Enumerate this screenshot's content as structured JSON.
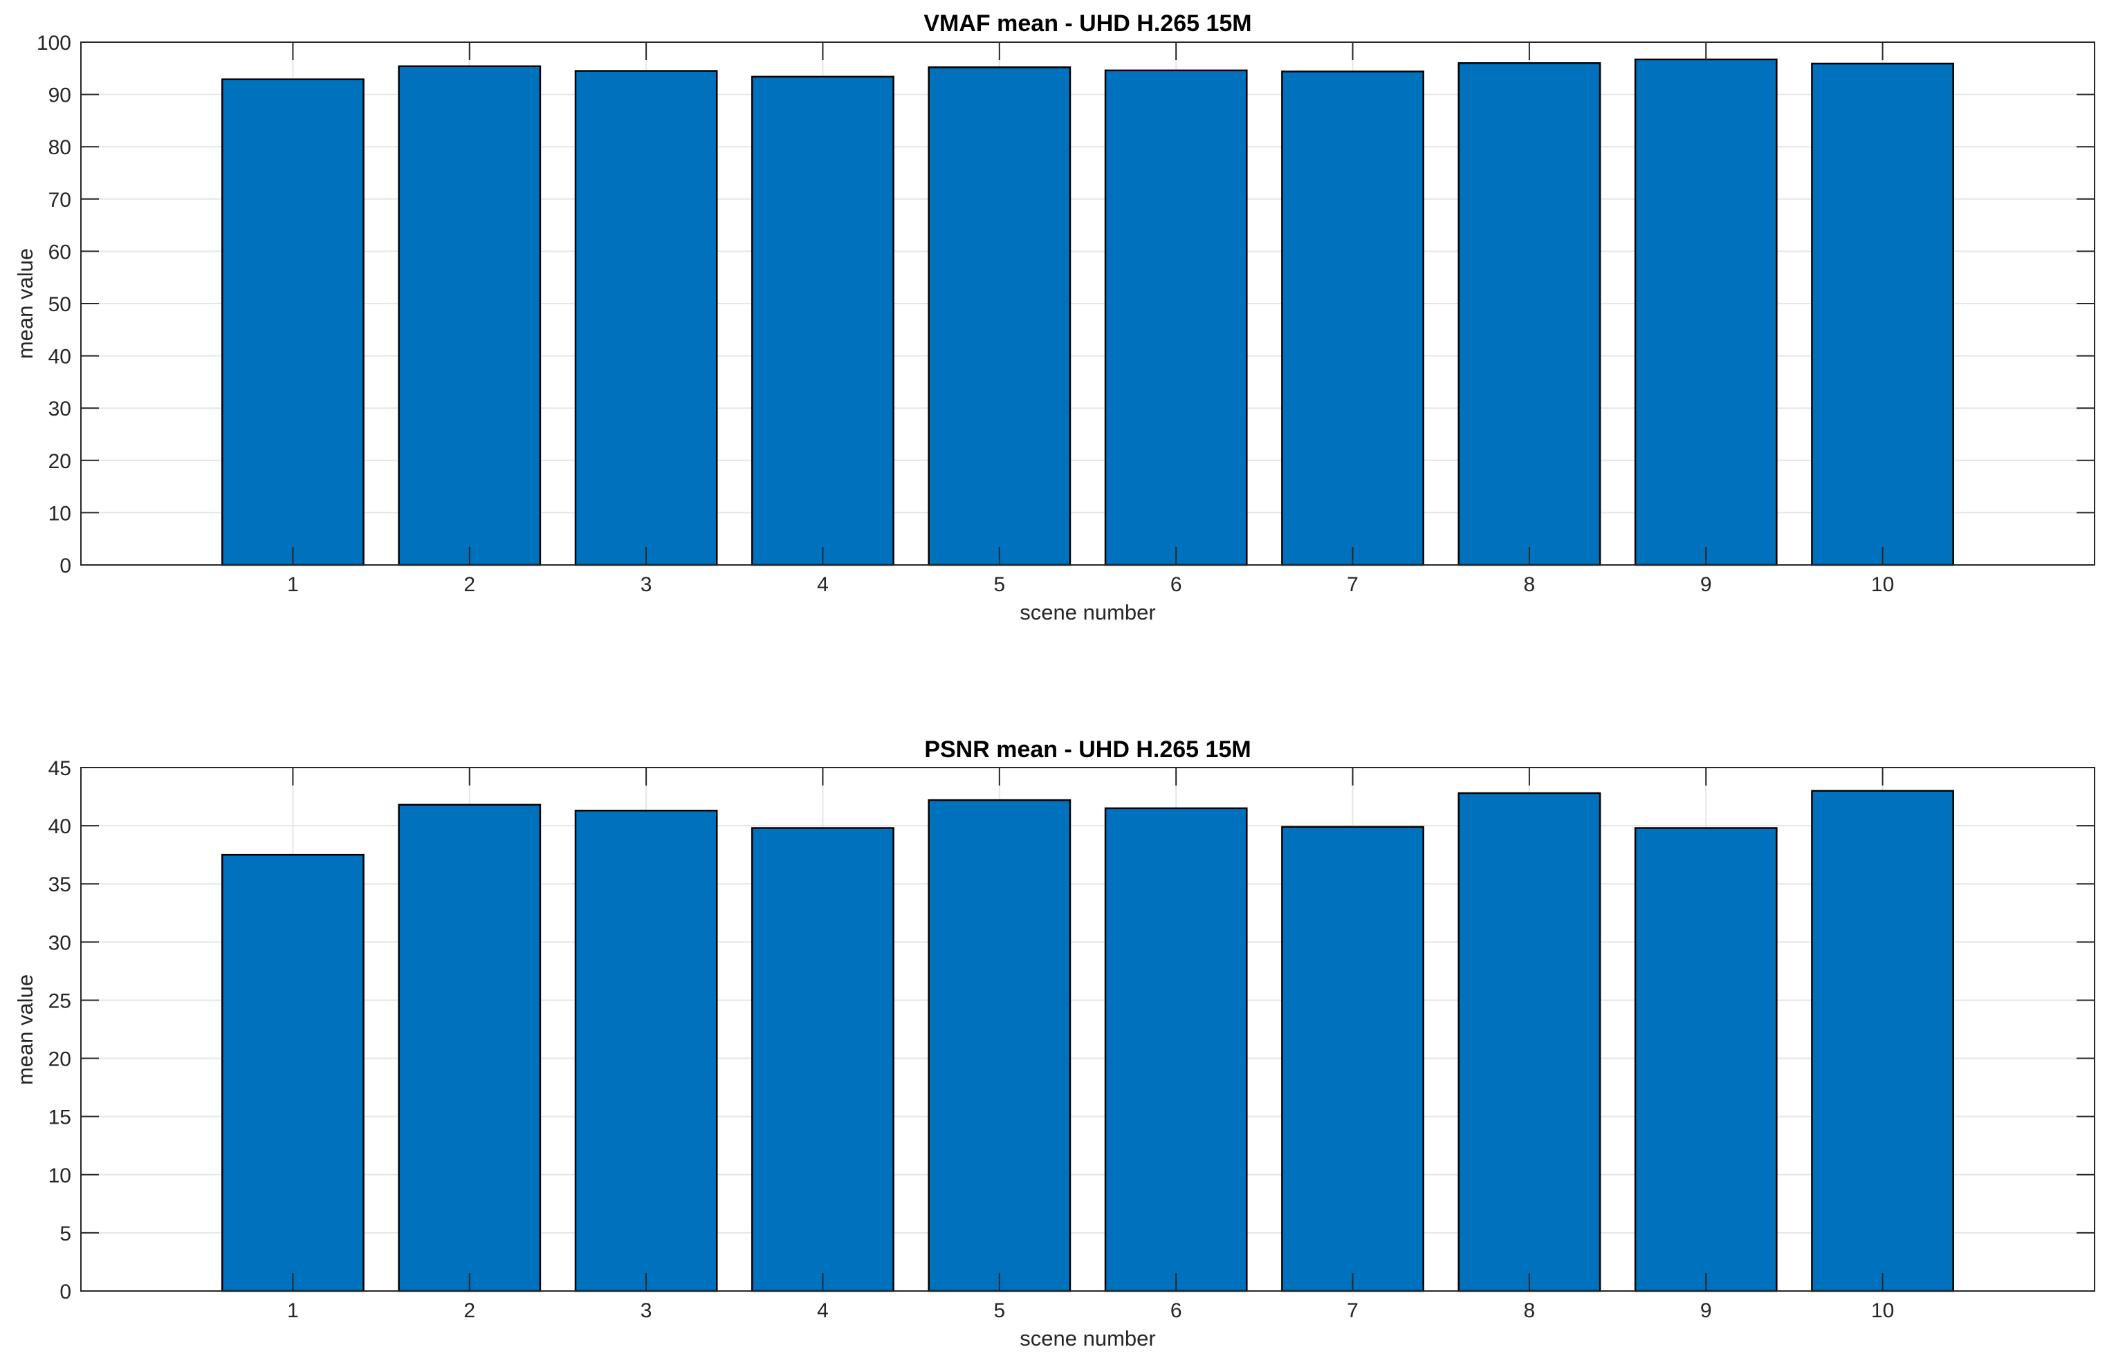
{
  "figure": {
    "background_color": "#ffffff",
    "bar_fill_color": "#0072bd",
    "bar_edge_color": "#000000",
    "grid_color": "#e6e6e6",
    "axis_color": "#262626",
    "title_color": "#000000"
  },
  "chart_data": [
    {
      "type": "bar",
      "title": "VMAF mean - UHD H.265 15M",
      "xlabel": "scene number",
      "ylabel": "mean value",
      "categories": [
        1,
        2,
        3,
        4,
        5,
        6,
        7,
        8,
        9,
        10
      ],
      "values": [
        92.9,
        95.4,
        94.5,
        93.4,
        95.2,
        94.6,
        94.4,
        96.0,
        96.7,
        95.9
      ],
      "ylim": [
        0,
        100
      ],
      "yticks": [
        0,
        10,
        20,
        30,
        40,
        50,
        60,
        70,
        80,
        90,
        100
      ],
      "xlim": [
        -0.2,
        11.2
      ],
      "bar_width": 0.8,
      "grid": true,
      "legend": null
    },
    {
      "type": "bar",
      "title": "PSNR mean - UHD H.265 15M",
      "xlabel": "scene number",
      "ylabel": "mean value",
      "categories": [
        1,
        2,
        3,
        4,
        5,
        6,
        7,
        8,
        9,
        10
      ],
      "values": [
        37.5,
        41.8,
        41.3,
        39.8,
        42.2,
        41.5,
        39.9,
        42.8,
        39.8,
        43.0
      ],
      "ylim": [
        0,
        45
      ],
      "yticks": [
        0,
        5,
        10,
        15,
        20,
        25,
        30,
        35,
        40,
        45
      ],
      "xlim": [
        -0.2,
        11.2
      ],
      "bar_width": 0.8,
      "grid": true,
      "legend": null
    }
  ]
}
